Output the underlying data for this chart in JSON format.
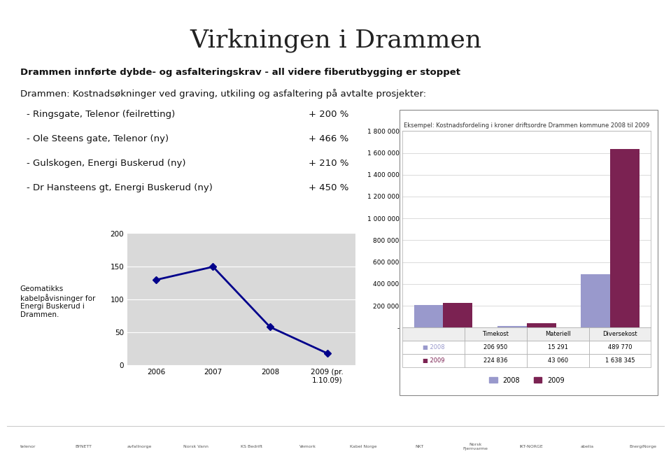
{
  "title": "Virkningen i Drammen",
  "subtitle1": "Drammen innførte dybde- og asfalteringskrav - all videre fiberutbygging er stoppet",
  "subtitle2": "Drammen: Kostnadsøkninger ved graving, utkiling og asfaltering på avtalte prosjekter:",
  "bullets": [
    [
      "- Ringsgate, Telenor (feilretting)",
      "+ 200 %"
    ],
    [
      "- Ole Steens gate, Telenor (ny)",
      "+ 466 %"
    ],
    [
      "- Gulskogen, Energi Buskerud (ny)",
      "+ 210 %"
    ],
    [
      "- Dr Hansteens gt, Energi Buskerud (ny)",
      "+ 450 %"
    ]
  ],
  "line_label": "Geomatikks\nkabelpåvisninger for\nEnergi Buskerud i\nDrammen.",
  "line_x": [
    "2006",
    "2007",
    "2008",
    "2009 (pr.\n1.10.09)"
  ],
  "line_y": [
    130,
    150,
    58,
    18
  ],
  "line_ylim": [
    0,
    200
  ],
  "line_yticks": [
    0,
    50,
    100,
    150,
    200
  ],
  "line_color": "#00008B",
  "bar_categories": [
    "Timekost",
    "Materiell",
    "Diversekost"
  ],
  "bar_2008": [
    206950,
    15291,
    489770
  ],
  "bar_2009": [
    224836,
    43060,
    1638345
  ],
  "bar_color_2008": "#9999CC",
  "bar_color_2009": "#7B2252",
  "bar_chart_title": "Eksempel: Kostnadsfordeling i kroner driftsordre Drammen kommune 2008 til 2009",
  "bar_ylim": [
    0,
    1800000
  ],
  "bar_yticks": [
    0,
    200000,
    400000,
    600000,
    800000,
    1000000,
    1200000,
    1400000,
    1600000,
    1800000
  ],
  "bar_ytick_labels": [
    "-",
    "200 000",
    "400 000",
    "600 000",
    "800 000",
    "1 000 000",
    "1 200 000",
    "1 400 000",
    "1 600 000",
    "1 800 000"
  ],
  "bg_color": "#FFFFFF",
  "table_2008_label": "2008",
  "table_2009_label": "2009"
}
